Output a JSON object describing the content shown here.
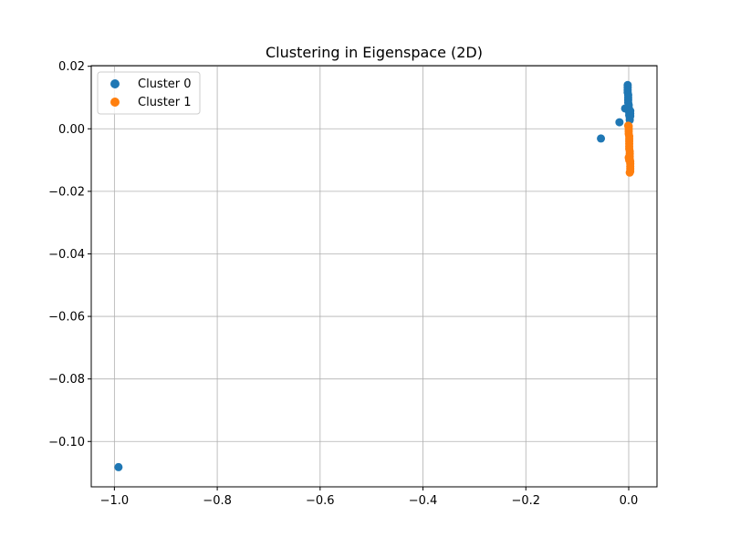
{
  "chart_data": {
    "type": "scatter",
    "title": "Clustering in Eigenspace (2D)",
    "xlabel": "",
    "ylabel": "",
    "xlim": [
      -1.045,
      0.055
    ],
    "ylim": [
      -0.1145,
      0.0202
    ],
    "xticks": [
      -1.0,
      -0.8,
      -0.6,
      -0.4,
      -0.2,
      0.0
    ],
    "xtick_labels": [
      "−1.0",
      "−0.8",
      "−0.6",
      "−0.4",
      "−0.2",
      "0.0"
    ],
    "yticks": [
      0.02,
      0.0,
      -0.02,
      -0.04,
      -0.06,
      -0.08,
      -0.1
    ],
    "ytick_labels": [
      "0.02",
      "0.00",
      "−0.02",
      "−0.04",
      "−0.06",
      "−0.08",
      "−0.10"
    ],
    "grid": true,
    "legend": "top-left",
    "series": [
      {
        "name": "Cluster 0",
        "color": "#1f77b4",
        "points": [
          [
            -0.992,
            -0.1082
          ],
          [
            -0.054,
            -0.0031
          ],
          [
            -0.018,
            0.0021
          ],
          [
            -0.007,
            0.0065
          ],
          [
            -0.002,
            0.014
          ],
          [
            -0.002,
            0.0132
          ],
          [
            -0.002,
            0.0124
          ],
          [
            -0.002,
            0.0116
          ],
          [
            -0.001,
            0.0108
          ],
          [
            -0.001,
            0.01
          ],
          [
            -0.001,
            0.0092
          ],
          [
            -0.001,
            0.0084
          ],
          [
            0.0,
            0.0076
          ],
          [
            0.0,
            0.0068
          ],
          [
            0.0,
            0.006
          ],
          [
            0.001,
            0.0052
          ],
          [
            0.001,
            0.0044
          ],
          [
            0.002,
            0.0036
          ],
          [
            0.002,
            0.0028
          ],
          [
            0.003,
            0.0057
          ],
          [
            0.003,
            0.0049
          ],
          [
            0.003,
            0.0041
          ]
        ]
      },
      {
        "name": "Cluster 1",
        "color": "#ff7f0e",
        "points": [
          [
            -0.001,
            0.001
          ],
          [
            0.0,
            0.0008
          ],
          [
            0.0,
            0.0
          ],
          [
            0.0,
            -0.0008
          ],
          [
            0.0,
            -0.0016
          ],
          [
            0.001,
            -0.0024
          ],
          [
            0.001,
            -0.0032
          ],
          [
            0.001,
            -0.004
          ],
          [
            0.001,
            -0.0048
          ],
          [
            0.001,
            -0.0056
          ],
          [
            0.001,
            -0.0064
          ],
          [
            0.002,
            -0.0072
          ],
          [
            0.002,
            -0.008
          ],
          [
            0.002,
            -0.0088
          ],
          [
            0.002,
            -0.0096
          ],
          [
            0.003,
            -0.0104
          ],
          [
            0.003,
            -0.0112
          ],
          [
            0.003,
            -0.012
          ],
          [
            0.003,
            -0.0128
          ],
          [
            0.003,
            -0.0136
          ],
          [
            0.002,
            -0.014
          ],
          [
            0.0,
            -0.0092
          ],
          [
            0.001,
            -0.01
          ]
        ]
      }
    ]
  }
}
